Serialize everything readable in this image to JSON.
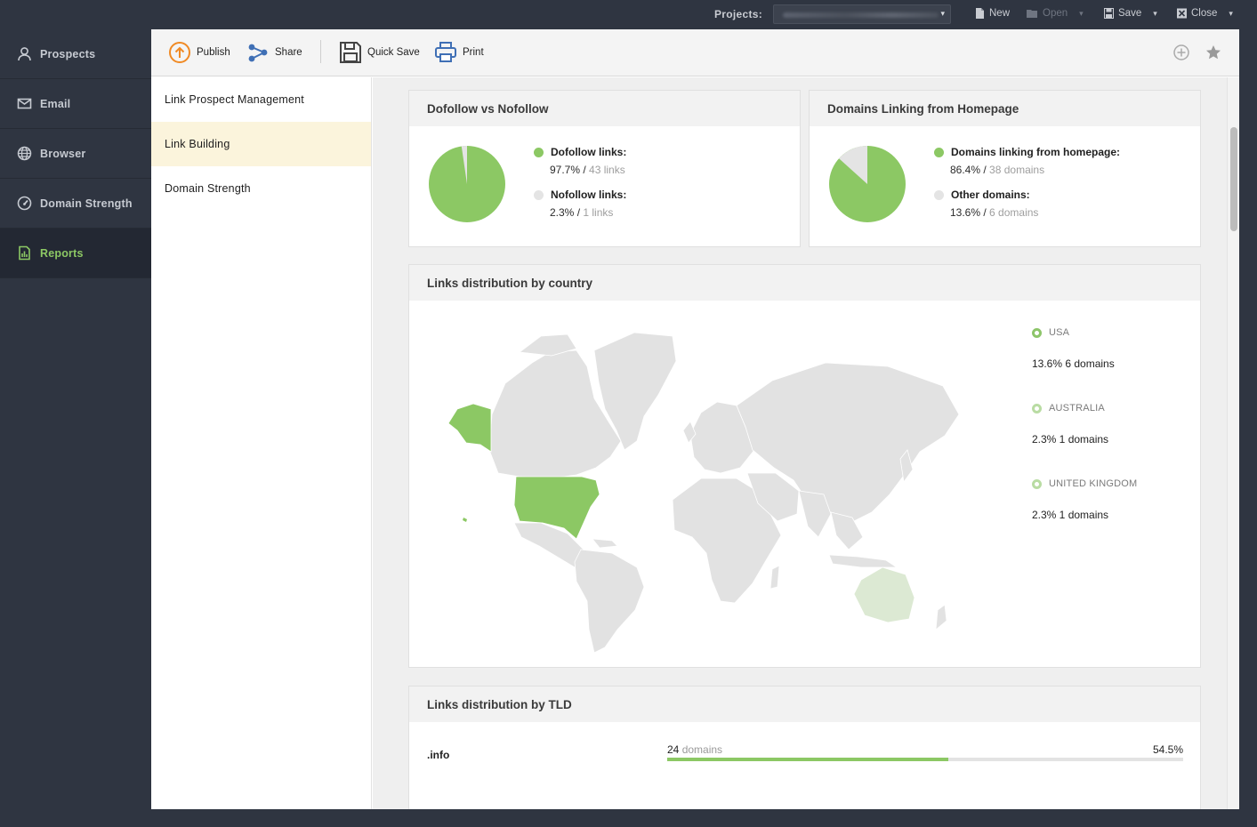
{
  "topbar": {
    "projects_label": "Projects:",
    "new_label": "New",
    "open_label": "Open",
    "save_label": "Save",
    "close_label": "Close"
  },
  "leftnav": {
    "items": [
      {
        "label": "Prospects",
        "icon": "user-icon"
      },
      {
        "label": "Email",
        "icon": "envelope-icon"
      },
      {
        "label": "Browser",
        "icon": "globe-icon"
      },
      {
        "label": "Domain Strength",
        "icon": "gauge-icon"
      },
      {
        "label": "Reports",
        "icon": "report-icon",
        "active": true
      }
    ]
  },
  "toolbar": {
    "publish_label": "Publish",
    "share_label": "Share",
    "quick_save_label": "Quick Save",
    "print_label": "Print"
  },
  "subnav": {
    "items": [
      {
        "label": "Link Prospect Management"
      },
      {
        "label": "Link Building",
        "active": true
      },
      {
        "label": "Domain Strength"
      }
    ]
  },
  "colors": {
    "accent_green": "#8cc864",
    "light_green": "#dce9d3",
    "neutral_slice": "#e4e4e4",
    "map_land": "#e2e2e2"
  },
  "cards": {
    "dofollow": {
      "title": "Dofollow vs Nofollow",
      "items": [
        {
          "label": "Dofollow links:",
          "pct": "97.7%",
          "sep": " / ",
          "count": "43 links",
          "color": "#8cc864"
        },
        {
          "label": "Nofollow links:",
          "pct": "2.3%",
          "sep": " / ",
          "count": "1 links",
          "color": "#e4e4e4"
        }
      ]
    },
    "homepage": {
      "title": "Domains Linking from Homepage",
      "items": [
        {
          "label": "Domains linking from homepage:",
          "pct": "86.4%",
          "sep": " / ",
          "count": "38 domains",
          "color": "#8cc864"
        },
        {
          "label": "Other domains:",
          "pct": "13.6%",
          "sep": " / ",
          "count": "6 domains",
          "color": "#e4e4e4"
        }
      ]
    },
    "country": {
      "title": "Links distribution by country",
      "entries": [
        {
          "name": "USA",
          "stat": "13.6% 6 domains"
        },
        {
          "name": "AUSTRALIA",
          "stat": "2.3% 1 domains"
        },
        {
          "name": "UNITED KINGDOM",
          "stat": "2.3% 1 domains"
        }
      ]
    },
    "tld": {
      "title": "Links distribution by TLD",
      "rows": [
        {
          "name": ".info",
          "count_num": "24",
          "count_unit": " domains",
          "pct": "54.5%",
          "fraction": 0.545
        }
      ]
    }
  }
}
